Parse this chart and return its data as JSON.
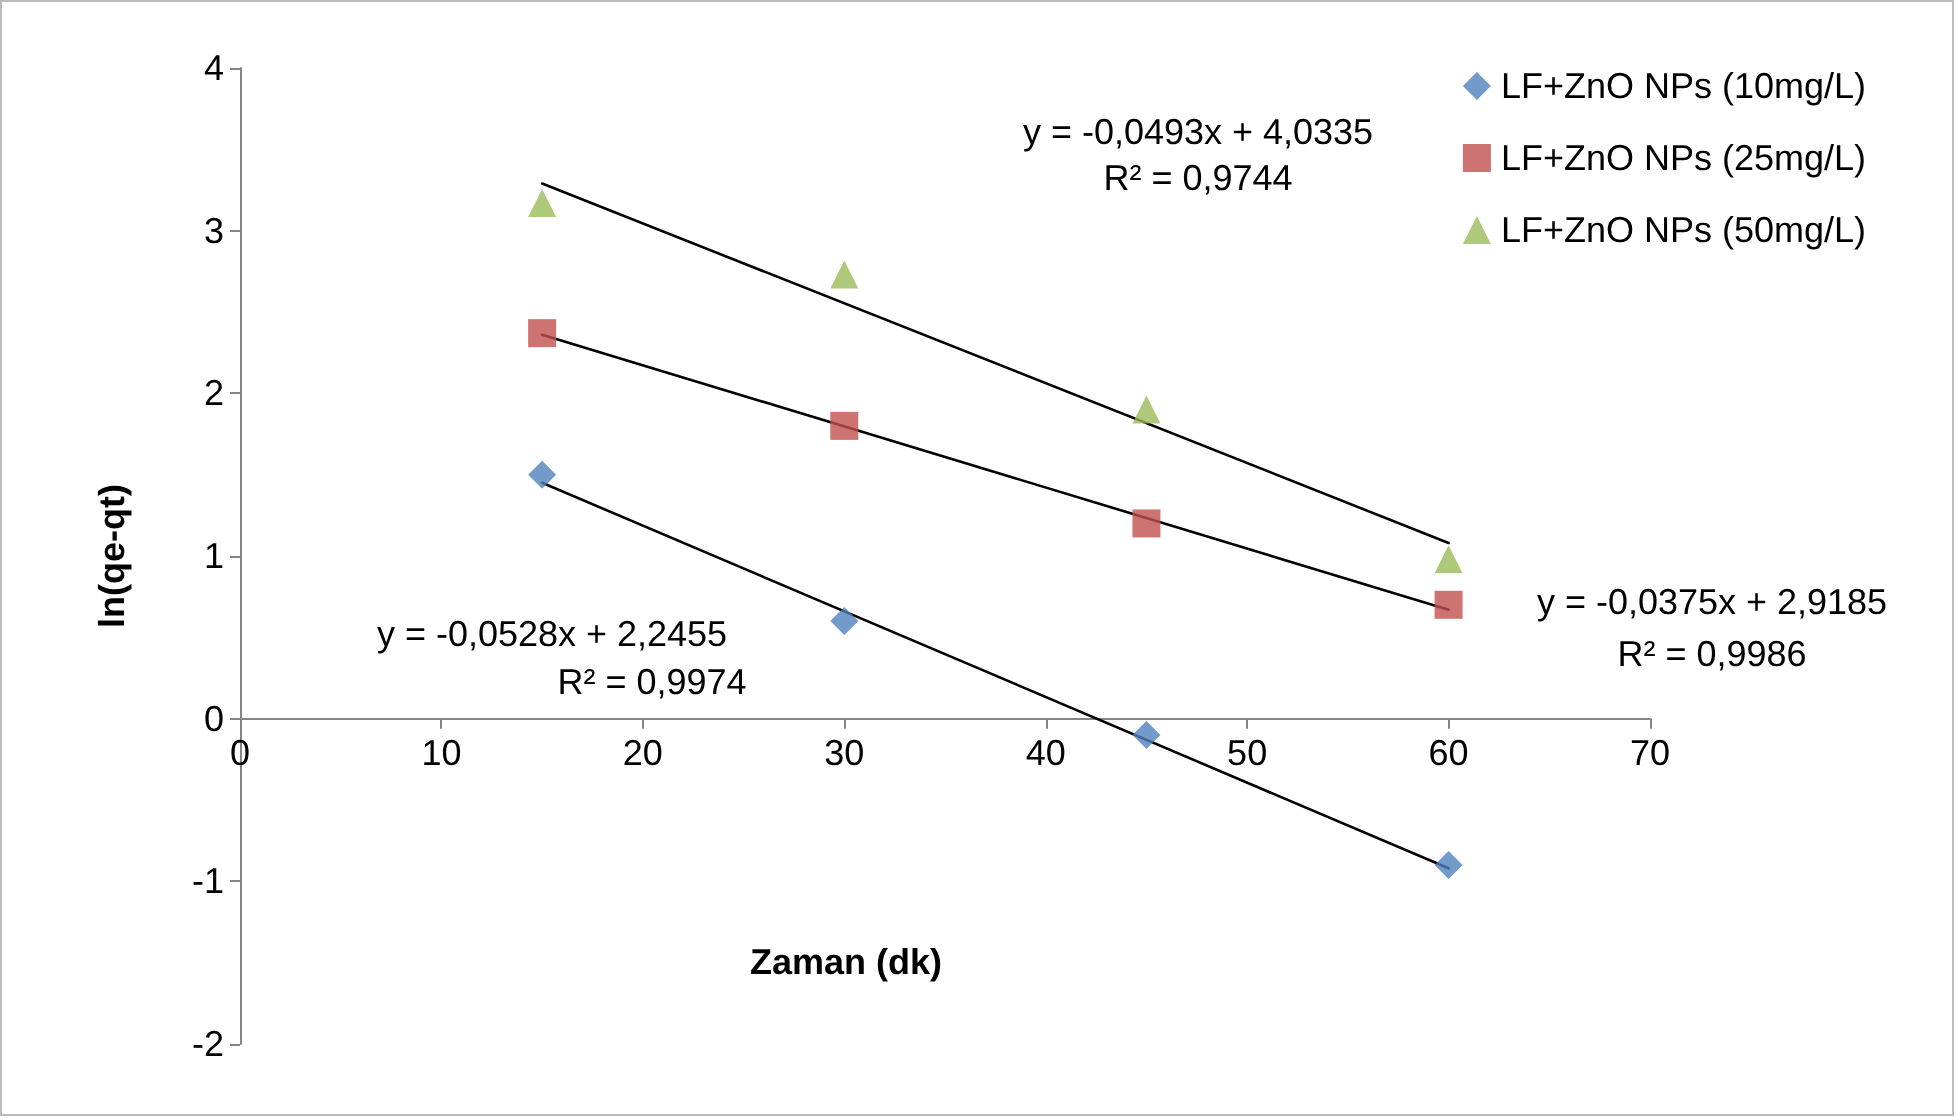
{
  "chart_data": {
    "type": "scatter",
    "xlabel": "Zaman (dk)",
    "ylabel": "ln(qe-qt)",
    "xlim": [
      0,
      70
    ],
    "xticks": [
      0,
      10,
      20,
      30,
      40,
      50,
      60,
      70
    ],
    "ylim": [
      -2,
      4
    ],
    "yticks": [
      -2,
      -1,
      0,
      1,
      2,
      3,
      4
    ],
    "grid": false,
    "legend": "top right",
    "series": [
      {
        "name": "LF+ZnO NPs (10mg/L)",
        "color": "#4f81bd",
        "marker": "diamond",
        "x": [
          15,
          30,
          45,
          60
        ],
        "values": [
          1.5,
          0.6,
          -0.1,
          -0.9
        ]
      },
      {
        "name": "LF+ZnO NPs (25mg/L)",
        "color": "#c0504d",
        "marker": "square",
        "x": [
          15,
          30,
          45,
          60
        ],
        "values": [
          2.37,
          1.8,
          1.2,
          0.7
        ]
      },
      {
        "name": "LF+ZnO NPs (50mg/L)",
        "color": "#9bbb59",
        "marker": "triangle",
        "x": [
          15,
          30,
          45,
          60
        ],
        "values": [
          3.17,
          2.73,
          1.9,
          0.98
        ]
      },
      {
        "type": "line",
        "color": "#000000",
        "marker": "none",
        "x": [
          15,
          60
        ],
        "values": [
          1.45,
          -0.92
        ]
      },
      {
        "type": "line",
        "color": "#000000",
        "marker": "none",
        "x": [
          15,
          60
        ],
        "values": [
          2.36,
          0.67
        ]
      },
      {
        "type": "line",
        "color": "#000000",
        "marker": "none",
        "x": [
          15,
          60
        ],
        "values": [
          3.29,
          1.08
        ]
      }
    ],
    "annotations": [
      "y = -0,0528x + 2,2455",
      "R² = 0,9974",
      "y = -0,0375x + 2,9185",
      "R² = 0,9986",
      "y = -0,0493x + 4,0335",
      "R² = 0,9744"
    ]
  }
}
